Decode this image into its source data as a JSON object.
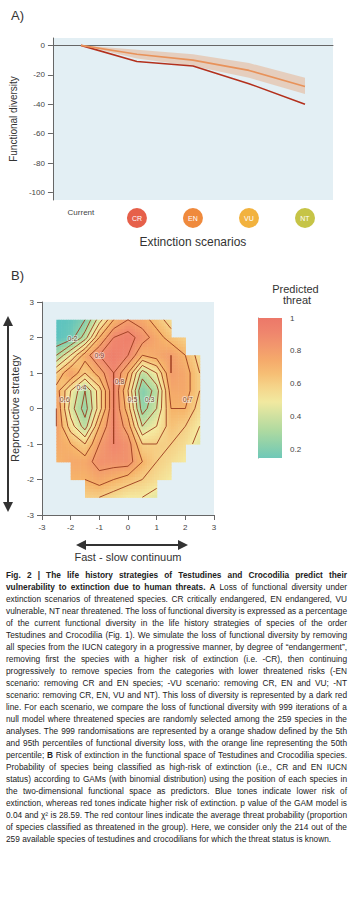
{
  "chart_data": [
    {
      "title": "A)",
      "type": "line",
      "categories": [
        "Current",
        "CR",
        "EN",
        "VU",
        "NT"
      ],
      "x_label": "Extinction scenarios",
      "y_label": "Functional diversity",
      "ylim": [
        -105,
        5
      ],
      "yticks": [
        0,
        -20,
        -40,
        -60,
        -80,
        -100
      ],
      "grid": false,
      "series": [
        {
          "color": "#b3301c",
          "values": [
            0,
            -11,
            -14,
            -26,
            -40
          ]
        },
        {
          "color": "#e8925a",
          "values": [
            0,
            -6,
            -10,
            -17,
            -28
          ],
          "low": [
            0,
            -9,
            -14,
            -22,
            -33
          ],
          "high": [
            0,
            -3,
            -6,
            -12,
            -22
          ]
        }
      ]
    },
    {
      "title": "B)",
      "type": "contour",
      "x_label": "Fast - slow continuum",
      "y_label": "Reproductive strategy",
      "xlim": [
        -3,
        3
      ],
      "ylim": [
        -3,
        3
      ],
      "xticks": [
        -3,
        -2,
        -1,
        0,
        1,
        2,
        3
      ],
      "yticks": [
        -3,
        -2,
        -1,
        0,
        1,
        2,
        3
      ],
      "grid": false,
      "color": "#9a3b1e",
      "data_labels": true,
      "x": [
        -3,
        -2.5,
        -2,
        -1.5,
        -1,
        -0.5,
        0,
        0.5,
        1,
        1.5,
        2,
        2.5,
        3
      ],
      "y": [
        -3,
        -2.5,
        -2,
        -1.5,
        -1,
        -0.5,
        0,
        0.5,
        1,
        1.5,
        2,
        2.5,
        3
      ],
      "cells": [
        [
          null,
          null,
          null,
          null,
          null,
          null,
          null,
          null,
          null,
          null,
          null,
          null,
          null
        ],
        [
          null,
          null,
          null,
          0.6,
          0.6,
          0.55,
          0.5,
          0.5,
          0.45,
          null,
          null,
          null,
          null
        ],
        [
          null,
          null,
          0.7,
          0.7,
          0.75,
          0.7,
          0.65,
          0.6,
          0.55,
          0.5,
          null,
          null,
          null
        ],
        [
          null,
          0.7,
          0.75,
          0.75,
          0.85,
          0.85,
          0.85,
          0.7,
          0.6,
          0.55,
          0.5,
          null,
          null
        ],
        [
          null,
          0.75,
          0.7,
          0.6,
          0.8,
          0.9,
          0.85,
          0.6,
          0.6,
          0.6,
          0.55,
          0.45,
          null
        ],
        [
          null,
          0.8,
          0.55,
          0.35,
          0.7,
          0.9,
          0.75,
          0.4,
          0.5,
          0.65,
          0.6,
          0.5,
          null
        ],
        [
          null,
          0.8,
          0.45,
          0.25,
          0.55,
          0.9,
          0.65,
          0.25,
          0.4,
          0.7,
          0.7,
          0.55,
          null
        ],
        [
          null,
          0.75,
          0.5,
          0.3,
          0.55,
          0.9,
          0.6,
          0.2,
          0.35,
          0.75,
          0.75,
          0.6,
          null
        ],
        [
          null,
          0.6,
          0.8,
          0.6,
          0.75,
          0.9,
          0.7,
          0.35,
          0.5,
          0.8,
          0.75,
          0.6,
          null
        ],
        [
          null,
          0.3,
          0.5,
          0.75,
          0.9,
          0.95,
          0.9,
          0.7,
          0.75,
          0.8,
          0.7,
          0.55,
          null
        ],
        [
          null,
          0.1,
          0.15,
          0.35,
          0.7,
          0.9,
          0.95,
          0.85,
          0.75,
          0.65,
          0.6,
          null,
          null
        ],
        [
          null,
          0.1,
          0.12,
          0.2,
          0.45,
          0.7,
          0.8,
          0.75,
          0.65,
          0.55,
          null,
          null,
          null
        ],
        [
          null,
          null,
          null,
          null,
          null,
          null,
          null,
          null,
          null,
          null,
          null,
          null,
          null
        ]
      ],
      "levels": [
        0.2,
        0.3,
        0.4,
        0.5,
        0.6,
        0.7,
        0.8,
        0.9
      ],
      "colorbar": {
        "label": "Predicted threat",
        "range": [
          0.15,
          1
        ],
        "ticks": [
          0.2,
          0.4,
          0.6,
          0.8,
          1
        ]
      }
    }
  ],
  "caption": [
    {
      "text": "Fig. 2 | The life history strategies of Testudines and Crocodilia predict their vulnerability to extinction due to human threats.",
      "bold": true
    },
    {
      "text": " ",
      "bold": false
    },
    {
      "text": "A",
      "bold": true
    },
    {
      "text": " Loss of functional diversity under extinction scenarios of threatened species. CR critically endangered, EN endangered, VU vulnerable, NT near threatened. The loss of functional diversity is expressed as a percentage of the current functional diversity in the life history strategies of species of the order Testudines and Crocodilia (Fig. 1). We simulate the loss of functional diversity by removing all species from the IUCN category in a progressive manner, by degree of “endangerment”, removing first the species with a higher risk of extinction (i.e. -CR), then continuing progressively to remove species from the categories with lower threatened risks (-EN scenario: removing CR and EN species; -VU scenario: removing CR, EN and VU; -NT scenario: removing CR, EN, VU and NT). This loss of diversity is represented by a dark red line. For each scenario, we compare the loss of functional diversity with 999 iterations of a null model where threatened species are randomly selected among the 259 species in the analyses. The 999 randomisations are represented by a orange shadow defined by the 5th and 95th percentiles of functional diversity loss, with the orange line representing the 50th percentile; ",
      "bold": false
    },
    {
      "text": "B",
      "bold": true
    },
    {
      "text": " Risk of extinction in the functional space of Testudines and Crocodilia species. Probability of species being classified as high-risk of extinction (i.e., CR and EN IUCN status) according to GAMs (with binomial distribution) using the position of each species in the two-dimensional functional space as predictors. Blue tones indicate lower risk of extinction, whereas red tones indicate higher risk of extinction. p value of the GAM model is 0.04 and χ² is 28.59. The red contour lines indicate the average threat probability (proportion of species classified as threatened in the group). Here, we consider only the 214 out of the 259 available species of testudines and crocodilians for which the threat status is known.",
      "bold": false
    }
  ]
}
